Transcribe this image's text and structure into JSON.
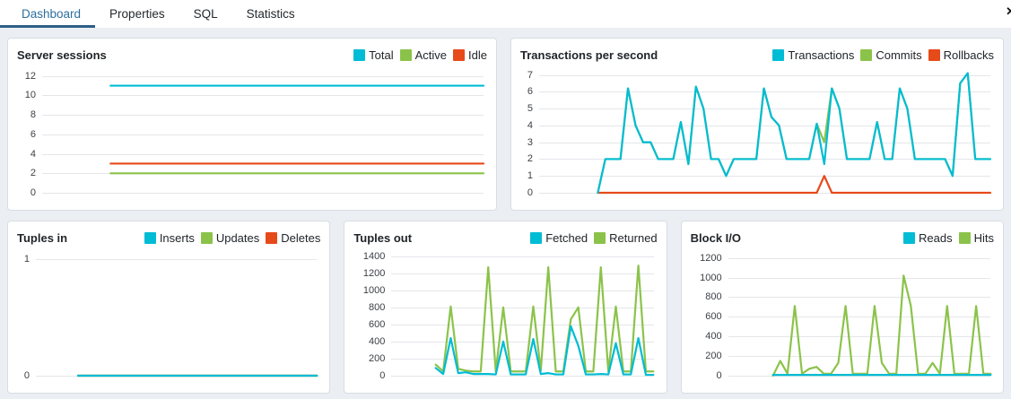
{
  "tabs": [
    {
      "label": "Dashboard",
      "active": true
    },
    {
      "label": "Properties",
      "active": false
    },
    {
      "label": "SQL",
      "active": false
    },
    {
      "label": "Statistics",
      "active": false
    }
  ],
  "close_icon": "✕",
  "colors": {
    "tab_active_text": "#2e6f9e",
    "tab_underline": "#2c5f87",
    "cyan": "#00BCD4",
    "green": "#8BC34A",
    "red": "#E64A19",
    "panel_bg": "#ffffff",
    "page_bg": "#ebeef2"
  },
  "chart_data": [
    {
      "type": "line",
      "title": "Server sessions",
      "ylim": [
        0,
        12.8
      ],
      "yticks": [
        0,
        2,
        4,
        6,
        8,
        10,
        12
      ],
      "x_start_frac": 0.155,
      "legend_position": "top-right",
      "series": [
        {
          "name": "Total",
          "color": "#00BCD4",
          "values": [
            11,
            11
          ]
        },
        {
          "name": "Active",
          "color": "#8BC34A",
          "values": [
            2,
            2
          ]
        },
        {
          "name": "Idle",
          "color": "#E64A19",
          "values": [
            3,
            3
          ]
        }
      ]
    },
    {
      "type": "line",
      "title": "Transactions per second",
      "ylim": [
        0,
        7.4
      ],
      "yticks": [
        0,
        1,
        2,
        3,
        4,
        5,
        6,
        7
      ],
      "x_start_frac": 0.13,
      "legend_position": "top-right",
      "series": [
        {
          "name": "Transactions",
          "color": "#00BCD4",
          "values": [
            0,
            2,
            2,
            2,
            6.2,
            4,
            3,
            3,
            2,
            2,
            2,
            4.2,
            1.7,
            6.3,
            5,
            2,
            2,
            1,
            2,
            2,
            2,
            2,
            6.2,
            4.5,
            4,
            2,
            2,
            2,
            2,
            4.1,
            1.7,
            6.2,
            5,
            2,
            2,
            2,
            2,
            4.2,
            2,
            2,
            6.2,
            5,
            2,
            2,
            2,
            2,
            2,
            1,
            6.5,
            7.1,
            2,
            2,
            2
          ]
        },
        {
          "name": "Commits",
          "color": "#8BC34A",
          "values": [
            0,
            2,
            2,
            2,
            6.2,
            4,
            3,
            3,
            2,
            2,
            2,
            4.2,
            1.7,
            6.3,
            5,
            2,
            2,
            1,
            2,
            2,
            2,
            2,
            6.2,
            4.5,
            4,
            2,
            2,
            2,
            2,
            4.1,
            3,
            6.2,
            5,
            2,
            2,
            2,
            2,
            4.2,
            2,
            2,
            6.2,
            5,
            2,
            2,
            2,
            2,
            2,
            1,
            6.5,
            7.1,
            2,
            2,
            2
          ]
        },
        {
          "name": "Rollbacks",
          "color": "#E64A19",
          "values": [
            0,
            0,
            0,
            0,
            0,
            0,
            0,
            0,
            0,
            0,
            0,
            0,
            0,
            0,
            0,
            0,
            0,
            0,
            0,
            0,
            0,
            0,
            0,
            0,
            0,
            0,
            0,
            0,
            0,
            0,
            1,
            0,
            0,
            0,
            0,
            0,
            0,
            0,
            0,
            0,
            0,
            0,
            0,
            0,
            0,
            0,
            0,
            0,
            0,
            0,
            0,
            0,
            0
          ]
        }
      ]
    },
    {
      "type": "line",
      "title": "Tuples in",
      "ylim": [
        0,
        1.07
      ],
      "yticks": [
        0,
        1
      ],
      "x_start_frac": 0.15,
      "legend_position": "top-right",
      "series": [
        {
          "name": "Inserts",
          "color": "#00BCD4",
          "values": [
            0,
            0
          ]
        },
        {
          "name": "Updates",
          "color": "#8BC34A",
          "values": [
            0,
            0
          ]
        },
        {
          "name": "Deletes",
          "color": "#E64A19",
          "values": [
            0,
            0
          ]
        }
      ]
    },
    {
      "type": "line",
      "title": "Tuples out",
      "ylim": [
        0,
        1460
      ],
      "yticks": [
        0,
        200,
        400,
        600,
        800,
        1000,
        1200,
        1400
      ],
      "x_start_frac": 0.17,
      "legend_position": "top-right",
      "series": [
        {
          "name": "Fetched",
          "color": "#00BCD4",
          "values": [
            90,
            20,
            440,
            30,
            40,
            20,
            20,
            20,
            15,
            400,
            15,
            15,
            15,
            430,
            20,
            30,
            15,
            15,
            580,
            350,
            15,
            15,
            20,
            15,
            380,
            15,
            15,
            440,
            10,
            10
          ]
        },
        {
          "name": "Returned",
          "color": "#8BC34A",
          "values": [
            130,
            50,
            810,
            80,
            60,
            50,
            50,
            1270,
            50,
            800,
            50,
            50,
            50,
            810,
            60,
            1270,
            50,
            50,
            660,
            800,
            50,
            50,
            1270,
            50,
            810,
            50,
            50,
            1290,
            50,
            50
          ]
        }
      ]
    },
    {
      "type": "line",
      "title": "Block I/O",
      "ylim": [
        0,
        1270
      ],
      "yticks": [
        0,
        200,
        400,
        600,
        800,
        1000,
        1200
      ],
      "x_start_frac": 0.17,
      "legend_position": "top-right",
      "series": [
        {
          "name": "Reads",
          "color": "#00BCD4",
          "values": [
            8,
            8
          ]
        },
        {
          "name": "Hits",
          "color": "#8BC34A",
          "values": [
            0,
            150,
            20,
            710,
            20,
            70,
            90,
            20,
            20,
            130,
            710,
            20,
            20,
            20,
            710,
            130,
            20,
            20,
            1020,
            710,
            20,
            20,
            130,
            20,
            710,
            20,
            20,
            20,
            710,
            20,
            20
          ]
        }
      ]
    }
  ]
}
